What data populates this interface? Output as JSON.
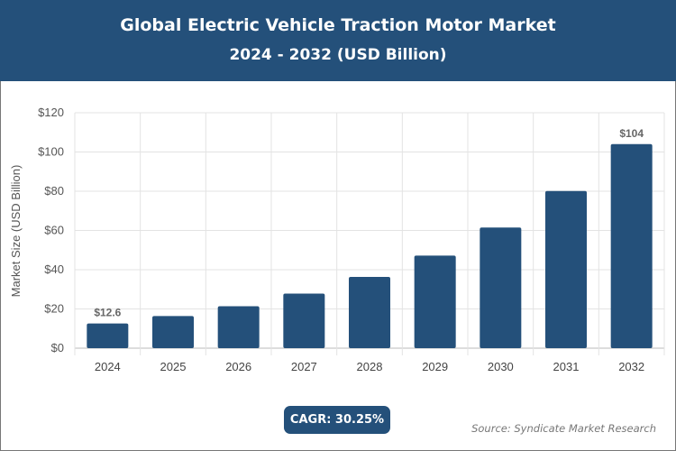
{
  "header": {
    "title": "Global Electric Vehicle Traction Motor Market",
    "subtitle": "2024 - 2032 (USD Billion)"
  },
  "chart_data": {
    "type": "bar",
    "title": "Global Electric Vehicle Traction Motor Market",
    "subtitle": "2024 - 2032 (USD Billion)",
    "categories": [
      "2024",
      "2025",
      "2026",
      "2027",
      "2028",
      "2029",
      "2030",
      "2031",
      "2032"
    ],
    "values": [
      12.6,
      16.4,
      21.4,
      27.8,
      36.3,
      47.2,
      61.5,
      80.1,
      104
    ],
    "data_labels": {
      "0": "$12.6",
      "8": "$104"
    },
    "ylabel": "Market Size (USD Billion)",
    "xlabel": "",
    "ylim": [
      0,
      120
    ],
    "yticks": [
      "$0",
      "$20",
      "$40",
      "$60",
      "$80",
      "$100",
      "$120"
    ],
    "grid": true,
    "bar_color": "#24507a"
  },
  "footer": {
    "cagr": "CAGR: 30.25%",
    "source": "Source: Syndicate Market Research"
  }
}
